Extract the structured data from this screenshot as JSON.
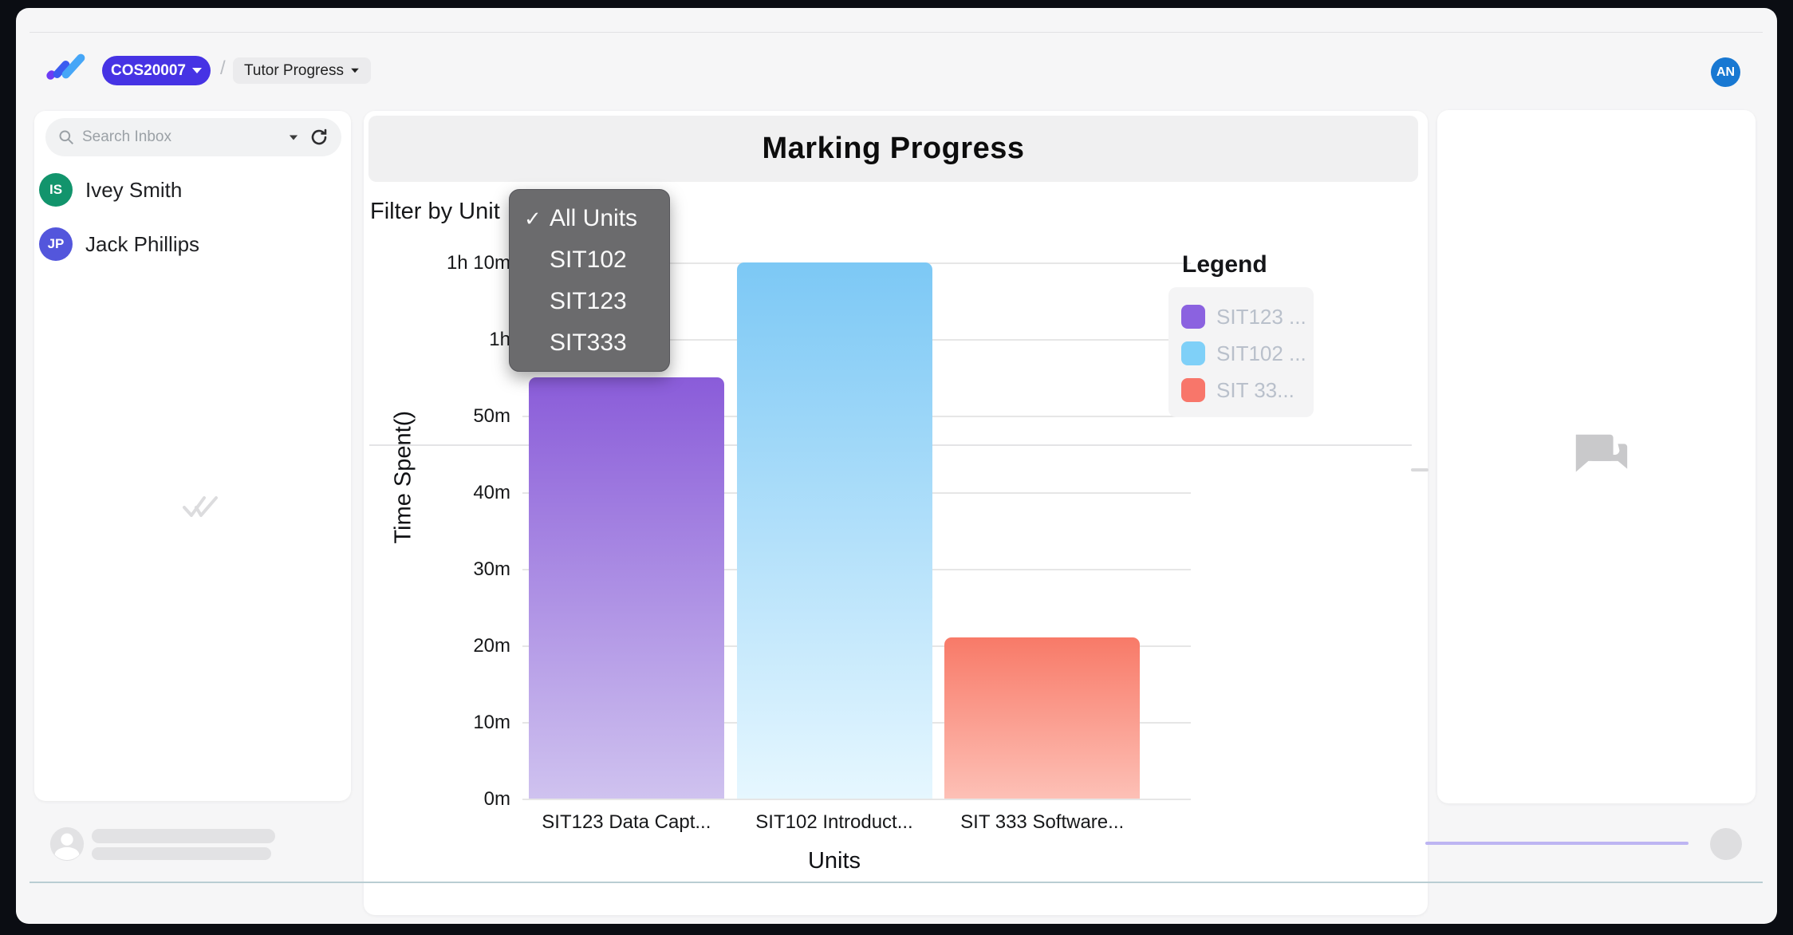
{
  "header": {
    "course_code": "COS20007",
    "nav_label": "Tutor Progress",
    "separator": "/",
    "avatar_initials": "AN",
    "avatar_color": "#1878d2",
    "course_pill_color": "#4633e4"
  },
  "sidebar": {
    "search_placeholder": "Search Inbox",
    "contacts": [
      {
        "initials": "IS",
        "name": "Ivey Smith",
        "color": "#12946c"
      },
      {
        "initials": "JP",
        "name": "Jack Phillips",
        "color": "#5356dc"
      }
    ]
  },
  "chart_panel": {
    "title": "Marking Progress",
    "filter_label": "Filter by Unit",
    "dropdown_options": [
      {
        "label": "All Units",
        "selected": true
      },
      {
        "label": "SIT102",
        "selected": false
      },
      {
        "label": "SIT123",
        "selected": false
      },
      {
        "label": "SIT333",
        "selected": false
      }
    ]
  },
  "chart_data": {
    "type": "bar",
    "title": "Marking Progress",
    "xlabel": "Units",
    "ylabel": "Time Spent()",
    "categories": [
      "SIT123 Data Capt...",
      "SIT102 Introduct...",
      "SIT 333 Software..."
    ],
    "values_minutes": [
      55,
      70,
      21
    ],
    "y_ticks": [
      {
        "label": "0m",
        "minutes": 0
      },
      {
        "label": "10m",
        "minutes": 10
      },
      {
        "label": "20m",
        "minutes": 20
      },
      {
        "label": "30m",
        "minutes": 30
      },
      {
        "label": "40m",
        "minutes": 40
      },
      {
        "label": "50m",
        "minutes": 50
      },
      {
        "label": "1h",
        "minutes": 60
      },
      {
        "label": "1h 10m",
        "minutes": 70
      }
    ],
    "ylim_minutes": [
      0,
      70
    ],
    "grid": true,
    "legend_position": "right",
    "legend_title": "Legend",
    "legend_items": [
      {
        "label": "SIT123 ...",
        "color": "#8b62e0"
      },
      {
        "label": "SIT102 ...",
        "color": "#7fd0f8"
      },
      {
        "label": "SIT 33...",
        "color": "#f8766a"
      }
    ],
    "bar_gradients": [
      {
        "top": "#8a5cd9",
        "bottom": "#cfc2ef"
      },
      {
        "top": "#7cc8f5",
        "bottom": "#e6f7ff"
      },
      {
        "top": "#f87a68",
        "bottom": "#fdc0b6"
      }
    ]
  }
}
